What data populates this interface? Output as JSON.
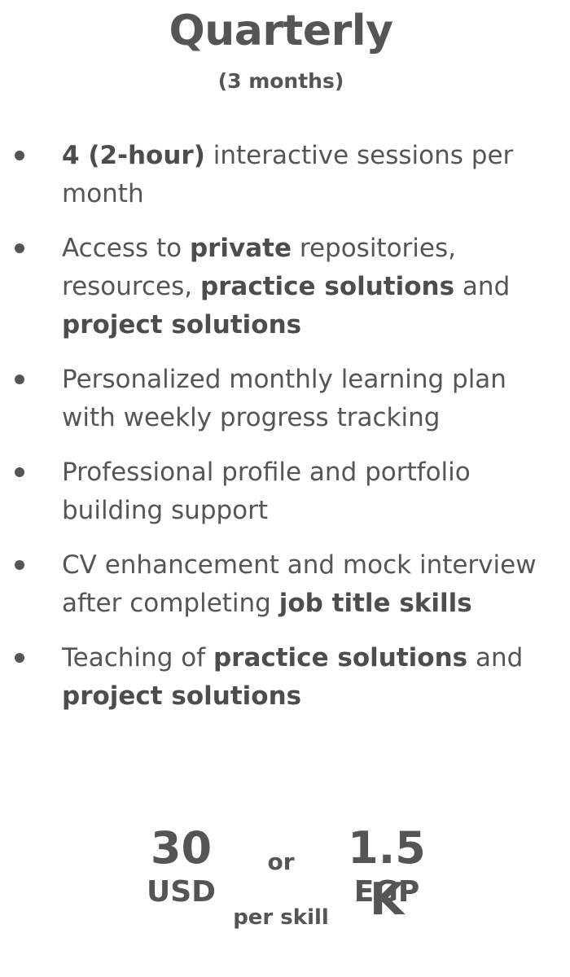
{
  "plan": {
    "title": "Quarterly",
    "subtitle": "(3 months)"
  },
  "features": [
    {
      "parts": [
        {
          "text": "4 (2-hour)",
          "bold": true
        },
        {
          "text": " interactive sessions per month",
          "bold": false
        }
      ]
    },
    {
      "parts": [
        {
          "text": "Access to ",
          "bold": false
        },
        {
          "text": "private",
          "bold": true
        },
        {
          "text": " repositories, resources, ",
          "bold": false
        },
        {
          "text": "practice solutions",
          "bold": true
        },
        {
          "text": " and ",
          "bold": false
        },
        {
          "text": "project solutions",
          "bold": true
        }
      ]
    },
    {
      "parts": [
        {
          "text": "Personalized monthly learning plan with weekly progress tracking",
          "bold": false
        }
      ]
    },
    {
      "parts": [
        {
          "text": "Professional profile and portfolio building support",
          "bold": false
        }
      ]
    },
    {
      "parts": [
        {
          "text": "CV enhancement and mock interview after completing ",
          "bold": false
        },
        {
          "text": "job title skills",
          "bold": true
        }
      ]
    },
    {
      "parts": [
        {
          "text": "Teaching of ",
          "bold": false
        },
        {
          "text": "practice solutions",
          "bold": true
        },
        {
          "text": " and ",
          "bold": false
        },
        {
          "text": "project solutions",
          "bold": true
        }
      ]
    }
  ],
  "pricing": {
    "usd_amount": "30",
    "usd_currency": "USD",
    "separator": "or",
    "egp_amount": "1.5 K",
    "egp_currency": "EGP",
    "per_unit": "per skill"
  }
}
